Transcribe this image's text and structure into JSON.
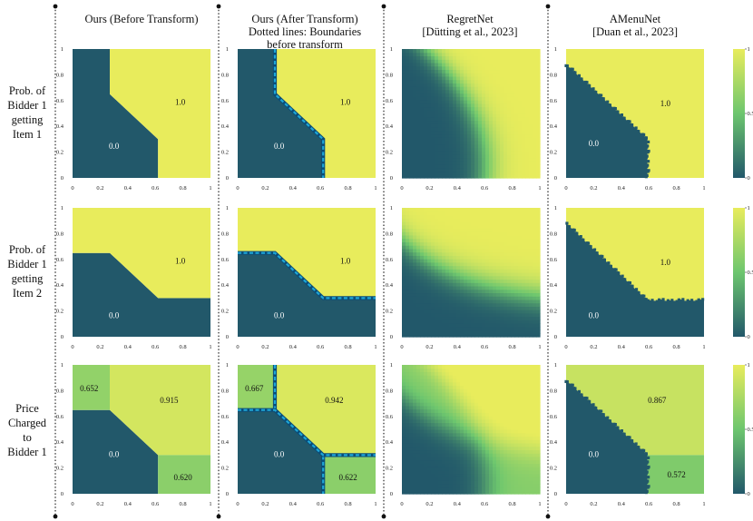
{
  "figure": {
    "columns": [
      {
        "title_lines": [
          "Ours (Before Transform)"
        ]
      },
      {
        "title_lines": [
          "Ours (After Transform)",
          "Dotted lines: Boundaries",
          "before transform"
        ]
      },
      {
        "title_lines": [
          "RegretNet",
          "[Dütting et al., 2023]"
        ]
      },
      {
        "title_lines": [
          "AMenuNet",
          "[Duan et al., 2023]"
        ]
      }
    ],
    "rows": [
      {
        "label_lines": [
          "Prob. of",
          "Bidder 1",
          "getting",
          "Item 1"
        ]
      },
      {
        "label_lines": [
          "Prob. of",
          "Bidder 1",
          "getting",
          "Item 2"
        ]
      },
      {
        "label_lines": [
          "Price",
          "Charged",
          "to",
          "Bidder 1"
        ]
      }
    ],
    "tick_labels": [
      "0",
      "0.2",
      "0.4",
      "0.6",
      "0.8",
      "1"
    ],
    "colorbar_ticks": [
      "0",
      "0.5",
      "1"
    ],
    "colors": {
      "low": "#22586a",
      "mid": "#6dc66e",
      "high": "#e8ec5c",
      "boundary": "#1fa6d6"
    }
  },
  "chart_data": [
    {
      "type": "heatmap",
      "id": "r0c0",
      "x_range": [
        0,
        1
      ],
      "y_range": [
        0,
        1
      ],
      "regions": [
        {
          "polygon": [
            [
              0,
              0
            ],
            [
              0.62,
              0
            ],
            [
              0.62,
              0.3
            ],
            [
              0.27,
              0.65
            ],
            [
              0.27,
              1
            ],
            [
              0,
              1
            ]
          ],
          "value": 0.0,
          "label": "0.0",
          "label_pos": [
            0.3,
            0.24
          ]
        },
        {
          "polygon": [
            [
              0.62,
              0
            ],
            [
              1,
              0
            ],
            [
              1,
              1
            ],
            [
              0.27,
              1
            ],
            [
              0.27,
              0.65
            ],
            [
              0.62,
              0.3
            ]
          ],
          "value": 1.0,
          "label": "1.0",
          "label_pos": [
            0.78,
            0.58
          ]
        }
      ]
    },
    {
      "type": "heatmap",
      "id": "r0c1",
      "x_range": [
        0,
        1
      ],
      "y_range": [
        0,
        1
      ],
      "regions": [
        {
          "polygon": [
            [
              0,
              0
            ],
            [
              0.62,
              0
            ],
            [
              0.62,
              0.3
            ],
            [
              0.27,
              0.65
            ],
            [
              0.27,
              1
            ],
            [
              0,
              1
            ]
          ],
          "value": 0.0,
          "label": "0.0",
          "label_pos": [
            0.3,
            0.24
          ]
        },
        {
          "polygon": [
            [
              0.62,
              0
            ],
            [
              1,
              0
            ],
            [
              1,
              1
            ],
            [
              0.27,
              1
            ],
            [
              0.27,
              0.65
            ],
            [
              0.62,
              0.3
            ]
          ],
          "value": 1.0,
          "label": "1.0",
          "label_pos": [
            0.78,
            0.58
          ]
        }
      ],
      "boundary": [
        [
          0.27,
          1
        ],
        [
          0.27,
          0.65
        ],
        [
          0.62,
          0.3
        ],
        [
          0.62,
          0
        ]
      ]
    },
    {
      "type": "heatmap",
      "id": "r0c2",
      "x_range": [
        0,
        1
      ],
      "y_range": [
        0,
        1
      ],
      "smooth": true,
      "field": "item1"
    },
    {
      "type": "heatmap",
      "id": "r0c3",
      "x_range": [
        0,
        1
      ],
      "y_range": [
        0,
        1
      ],
      "regions": [
        {
          "polygon": [
            [
              0,
              0
            ],
            [
              0.59,
              0
            ],
            [
              0.59,
              0.3
            ],
            [
              0,
              0.88
            ]
          ],
          "value": 0.0,
          "label": "0.0",
          "label_pos": [
            0.2,
            0.26
          ]
        },
        {
          "polygon": [
            [
              0.59,
              0
            ],
            [
              1,
              0
            ],
            [
              1,
              1
            ],
            [
              0,
              1
            ],
            [
              0,
              0.88
            ],
            [
              0.59,
              0.3
            ]
          ],
          "value": 1.0,
          "label": "1.0",
          "label_pos": [
            0.72,
            0.57
          ]
        }
      ],
      "ragged": true
    },
    {
      "type": "heatmap",
      "id": "r1c0",
      "x_range": [
        0,
        1
      ],
      "y_range": [
        0,
        1
      ],
      "regions": [
        {
          "polygon": [
            [
              0,
              0
            ],
            [
              1,
              0
            ],
            [
              1,
              0.3
            ],
            [
              0.62,
              0.3
            ],
            [
              0.27,
              0.65
            ],
            [
              0,
              0.65
            ]
          ],
          "value": 0.0,
          "label": "0.0",
          "label_pos": [
            0.3,
            0.16
          ]
        },
        {
          "polygon": [
            [
              0,
              0.65
            ],
            [
              0.27,
              0.65
            ],
            [
              0.62,
              0.3
            ],
            [
              1,
              0.3
            ],
            [
              1,
              1
            ],
            [
              0,
              1
            ]
          ],
          "value": 1.0,
          "label": "1.0",
          "label_pos": [
            0.78,
            0.58
          ]
        }
      ]
    },
    {
      "type": "heatmap",
      "id": "r1c1",
      "x_range": [
        0,
        1
      ],
      "y_range": [
        0,
        1
      ],
      "regions": [
        {
          "polygon": [
            [
              0,
              0
            ],
            [
              1,
              0
            ],
            [
              1,
              0.3
            ],
            [
              0.62,
              0.3
            ],
            [
              0.27,
              0.65
            ],
            [
              0,
              0.65
            ]
          ],
          "value": 0.0,
          "label": "0.0",
          "label_pos": [
            0.3,
            0.16
          ]
        },
        {
          "polygon": [
            [
              0,
              0.65
            ],
            [
              0.27,
              0.65
            ],
            [
              0.62,
              0.3
            ],
            [
              1,
              0.3
            ],
            [
              1,
              1
            ],
            [
              0,
              1
            ]
          ],
          "value": 1.0,
          "label": "1.0",
          "label_pos": [
            0.78,
            0.58
          ]
        }
      ],
      "boundary": [
        [
          0,
          0.65
        ],
        [
          0.27,
          0.65
        ],
        [
          0.62,
          0.3
        ],
        [
          1,
          0.3
        ]
      ]
    },
    {
      "type": "heatmap",
      "id": "r1c2",
      "x_range": [
        0,
        1
      ],
      "y_range": [
        0,
        1
      ],
      "smooth": true,
      "field": "item2"
    },
    {
      "type": "heatmap",
      "id": "r1c3",
      "x_range": [
        0,
        1
      ],
      "y_range": [
        0,
        1
      ],
      "regions": [
        {
          "polygon": [
            [
              0,
              0
            ],
            [
              1,
              0
            ],
            [
              1,
              0.28
            ],
            [
              0.59,
              0.28
            ],
            [
              0,
              0.88
            ]
          ],
          "value": 0.0,
          "label": "0.0",
          "label_pos": [
            0.2,
            0.16
          ]
        },
        {
          "polygon": [
            [
              0,
              0.88
            ],
            [
              0.59,
              0.28
            ],
            [
              1,
              0.28
            ],
            [
              1,
              1
            ],
            [
              0,
              1
            ]
          ],
          "value": 1.0,
          "label": "1.0",
          "label_pos": [
            0.72,
            0.57
          ]
        }
      ],
      "ragged": true
    },
    {
      "type": "heatmap",
      "id": "r2c0",
      "x_range": [
        0,
        1
      ],
      "y_range": [
        0,
        1
      ],
      "regions": [
        {
          "polygon": [
            [
              0,
              0
            ],
            [
              0.62,
              0
            ],
            [
              0.62,
              0.3
            ],
            [
              0.27,
              0.65
            ],
            [
              0,
              0.65
            ]
          ],
          "value": 0.0,
          "label": "0.0",
          "label_pos": [
            0.3,
            0.3
          ]
        },
        {
          "polygon": [
            [
              0,
              0.65
            ],
            [
              0.27,
              0.65
            ],
            [
              0.27,
              1
            ],
            [
              0,
              1
            ]
          ],
          "value": 0.652,
          "label": "0.652",
          "label_pos": [
            0.12,
            0.81
          ]
        },
        {
          "polygon": [
            [
              0.27,
              0.65
            ],
            [
              0.27,
              1
            ],
            [
              1,
              1
            ],
            [
              1,
              0.3
            ],
            [
              0.62,
              0.3
            ]
          ],
          "value": 0.915,
          "label": "0.915",
          "label_pos": [
            0.7,
            0.72
          ]
        },
        {
          "polygon": [
            [
              0.62,
              0
            ],
            [
              1,
              0
            ],
            [
              1,
              0.3
            ],
            [
              0.62,
              0.3
            ]
          ],
          "value": 0.62,
          "label": "0.620",
          "label_pos": [
            0.8,
            0.12
          ]
        }
      ]
    },
    {
      "type": "heatmap",
      "id": "r2c1",
      "x_range": [
        0,
        1
      ],
      "y_range": [
        0,
        1
      ],
      "regions": [
        {
          "polygon": [
            [
              0,
              0
            ],
            [
              0.62,
              0
            ],
            [
              0.62,
              0.3
            ],
            [
              0.27,
              0.65
            ],
            [
              0,
              0.65
            ]
          ],
          "value": 0.0,
          "label": "0.0",
          "label_pos": [
            0.3,
            0.3
          ]
        },
        {
          "polygon": [
            [
              0,
              0.65
            ],
            [
              0.27,
              0.65
            ],
            [
              0.27,
              1
            ],
            [
              0,
              1
            ]
          ],
          "value": 0.667,
          "label": "0.667",
          "label_pos": [
            0.12,
            0.81
          ]
        },
        {
          "polygon": [
            [
              0.27,
              0.65
            ],
            [
              0.27,
              1
            ],
            [
              1,
              1
            ],
            [
              1,
              0.3
            ],
            [
              0.62,
              0.3
            ]
          ],
          "value": 0.942,
          "label": "0.942",
          "label_pos": [
            0.7,
            0.72
          ]
        },
        {
          "polygon": [
            [
              0.62,
              0
            ],
            [
              1,
              0
            ],
            [
              1,
              0.3
            ],
            [
              0.62,
              0.3
            ]
          ],
          "value": 0.622,
          "label": "0.622",
          "label_pos": [
            0.8,
            0.12
          ]
        }
      ],
      "boundary": [
        [
          0.27,
          1
        ],
        [
          0.27,
          0.65
        ],
        [
          0.62,
          0.3
        ],
        [
          0.62,
          0
        ]
      ],
      "boundary2": [
        [
          0,
          0.65
        ],
        [
          0.27,
          0.65
        ],
        [
          0.62,
          0.3
        ],
        [
          1,
          0.3
        ]
      ]
    },
    {
      "type": "heatmap",
      "id": "r2c2",
      "x_range": [
        0,
        1
      ],
      "y_range": [
        0,
        1
      ],
      "smooth": true,
      "field": "price"
    },
    {
      "type": "heatmap",
      "id": "r2c3",
      "x_range": [
        0,
        1
      ],
      "y_range": [
        0,
        1
      ],
      "regions": [
        {
          "polygon": [
            [
              0,
              0
            ],
            [
              0.59,
              0
            ],
            [
              0.59,
              0.3
            ],
            [
              0,
              0.88
            ]
          ],
          "value": 0.0,
          "label": "0.0",
          "label_pos": [
            0.2,
            0.3
          ]
        },
        {
          "polygon": [
            [
              0,
              0.88
            ],
            [
              0.59,
              0.3
            ],
            [
              1,
              0.3
            ],
            [
              1,
              1
            ],
            [
              0,
              1
            ]
          ],
          "value": 0.867,
          "label": "0.867",
          "label_pos": [
            0.66,
            0.72
          ]
        },
        {
          "polygon": [
            [
              0.59,
              0
            ],
            [
              1,
              0
            ],
            [
              1,
              0.3
            ],
            [
              0.59,
              0.3
            ]
          ],
          "value": 0.572,
          "label": "0.572",
          "label_pos": [
            0.8,
            0.14
          ]
        }
      ],
      "ragged": true
    }
  ]
}
